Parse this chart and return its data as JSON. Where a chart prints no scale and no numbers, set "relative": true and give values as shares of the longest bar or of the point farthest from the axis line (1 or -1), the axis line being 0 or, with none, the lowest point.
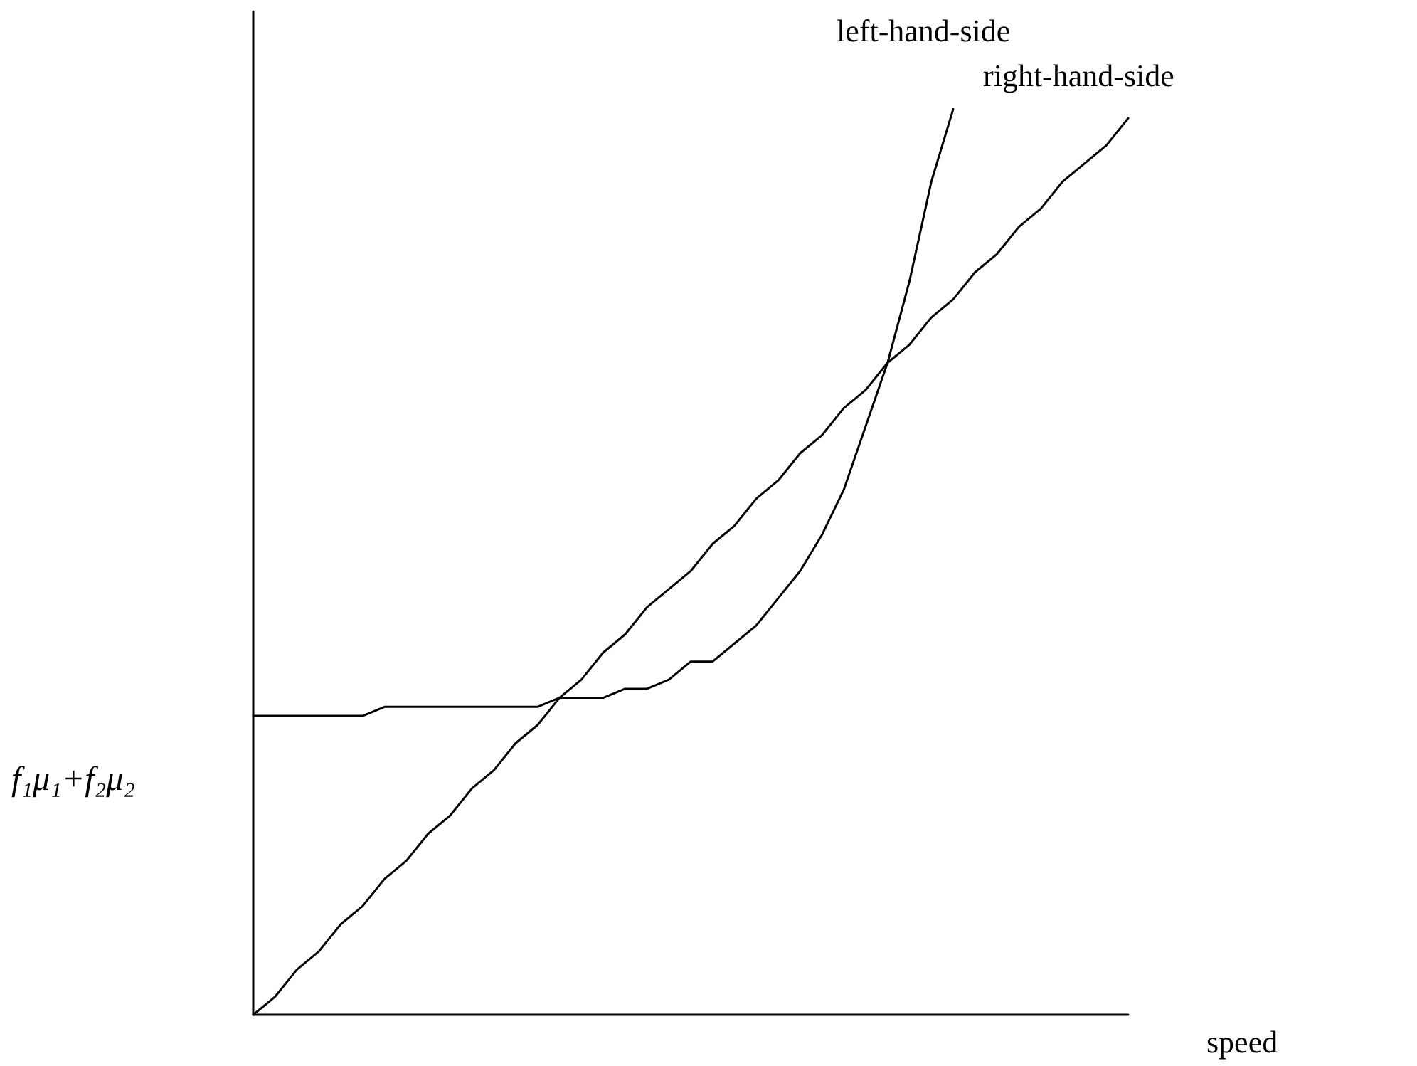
{
  "chart_data": {
    "type": "line",
    "relative": true,
    "xlabel": "speed",
    "ylabel": "f₁μ₁+f₂μ₂",
    "marker": "none",
    "line_style": "solid",
    "categories": [
      null,
      null,
      null,
      null,
      null,
      null,
      null,
      null,
      null,
      null,
      null,
      null,
      null,
      null,
      null,
      null,
      null,
      null,
      null,
      null,
      null,
      null,
      null,
      null,
      null,
      null,
      null,
      null,
      null,
      null,
      null,
      null,
      null,
      null,
      null,
      null,
      null,
      null,
      null,
      null,
      null
    ],
    "series": [
      {
        "name": "left-hand-side",
        "color": "#000000",
        "values": [
          0.33,
          0.33,
          0.33,
          0.33,
          0.33,
          0.33,
          0.34,
          0.34,
          0.34,
          0.34,
          0.34,
          0.34,
          0.34,
          0.34,
          0.35,
          0.35,
          0.35,
          0.36,
          0.36,
          0.37,
          0.39,
          0.39,
          0.41,
          0.43,
          0.46,
          0.49,
          0.53,
          0.58,
          0.65,
          0.72,
          0.81,
          0.92,
          1.0,
          null,
          null,
          null,
          null,
          null,
          null,
          null,
          null
        ]
      },
      {
        "name": "right-hand-side",
        "color": "#000000",
        "values": [
          0,
          0.02,
          0.05,
          0.07,
          0.1,
          0.12,
          0.15,
          0.17,
          0.2,
          0.22,
          0.25,
          0.27,
          0.3,
          0.32,
          0.35,
          0.37,
          0.4,
          0.42,
          0.45,
          0.47,
          0.49,
          0.52,
          0.54,
          0.57,
          0.59,
          0.62,
          0.64,
          0.67,
          0.69,
          0.72,
          0.74,
          0.77,
          0.79,
          0.82,
          0.84,
          0.87,
          0.89,
          0.92,
          0.94,
          0.96,
          0.99
        ]
      }
    ]
  }
}
